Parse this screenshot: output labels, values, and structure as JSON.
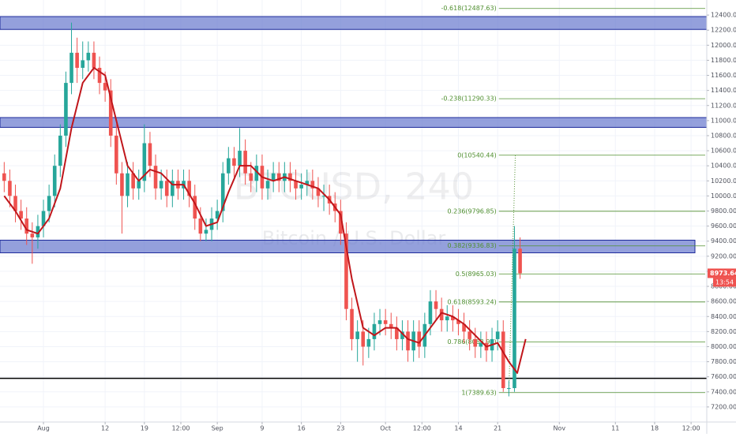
{
  "chart_data": {
    "type": "candlestick",
    "watermark": [
      "BTCUSD, 240",
      "Bitcoin / U.S. Dollar"
    ],
    "up_color": "#26a69a",
    "down_color": "#ef5350",
    "grid": true,
    "xlim": [
      -7.75,
      118.3
    ],
    "ylim": [
      7000,
      12600
    ],
    "xticks": [
      {
        "value": 0,
        "label": "Aug"
      },
      {
        "value": 11,
        "label": "12"
      },
      {
        "value": 18,
        "label": "19"
      },
      {
        "value": 24.5,
        "label": "12:00"
      },
      {
        "value": 31,
        "label": "Sep"
      },
      {
        "value": 39,
        "label": "9"
      },
      {
        "value": 46,
        "label": "16"
      },
      {
        "value": 53,
        "label": "23"
      },
      {
        "value": 61,
        "label": "Oct"
      },
      {
        "value": 67.5,
        "label": "12:00"
      },
      {
        "value": 74,
        "label": "14"
      },
      {
        "value": 81,
        "label": "21"
      },
      {
        "value": 92,
        "label": "Nov"
      },
      {
        "value": 102,
        "label": "11"
      },
      {
        "value": 109,
        "label": "18"
      },
      {
        "value": 115.5,
        "label": "12:00"
      }
    ],
    "yticks": [
      {
        "value": 7200,
        "label": "7200.00"
      },
      {
        "value": 7400,
        "label": "7400.00"
      },
      {
        "value": 7600,
        "label": "7600.00"
      },
      {
        "value": 7800,
        "label": "7800.00"
      },
      {
        "value": 8000,
        "label": "8000.00"
      },
      {
        "value": 8200,
        "label": "8200.00"
      },
      {
        "value": 8400,
        "label": "8400.00"
      },
      {
        "value": 8600,
        "label": "8600.00"
      },
      {
        "value": 8800,
        "label": "8800.00"
      },
      {
        "value": 9000,
        "label": "9000.00"
      },
      {
        "value": 9200,
        "label": "9200.00"
      },
      {
        "value": 9400,
        "label": "9400.00"
      },
      {
        "value": 9600,
        "label": "9600.00"
      },
      {
        "value": 9800,
        "label": "9800.00"
      },
      {
        "value": 10000,
        "label": "10000.00"
      },
      {
        "value": 10200,
        "label": "10200.00"
      },
      {
        "value": 10400,
        "label": "10400.00"
      },
      {
        "value": 10600,
        "label": "10600.00"
      },
      {
        "value": 10800,
        "label": "10800.00"
      },
      {
        "value": 11000,
        "label": "11000.00"
      },
      {
        "value": 11200,
        "label": "11200.00"
      },
      {
        "value": 11400,
        "label": "11400.00"
      },
      {
        "value": 11600,
        "label": "11600.00"
      },
      {
        "value": 11800,
        "label": "11800.00"
      },
      {
        "value": 12000,
        "label": "12000.00"
      },
      {
        "value": 12200,
        "label": "12200.00"
      },
      {
        "value": 12400,
        "label": "12400.00"
      }
    ],
    "x": [
      -7,
      -6,
      -5,
      -4,
      -3,
      -2,
      -1,
      0,
      1,
      2,
      3,
      4,
      5,
      6,
      7,
      8,
      9,
      10,
      11,
      12,
      13,
      14,
      15,
      16,
      17,
      18,
      19,
      20,
      21,
      22,
      23,
      24,
      25,
      26,
      27,
      28,
      29,
      30,
      31,
      32,
      33,
      34,
      35,
      36,
      37,
      38,
      39,
      40,
      41,
      42,
      43,
      44,
      45,
      46,
      47,
      48,
      49,
      50,
      51,
      52,
      53,
      54,
      55,
      56,
      57,
      58,
      59,
      60,
      61,
      62,
      63,
      64,
      65,
      66,
      67,
      68,
      69,
      70,
      71,
      72,
      73,
      74,
      75,
      76,
      77,
      78,
      79,
      80,
      81,
      82,
      83,
      84,
      85
    ],
    "open": [
      10300,
      10200,
      10000,
      9800,
      9700,
      9500,
      9450,
      9600,
      9800,
      10000,
      10400,
      10800,
      11500,
      11900,
      11700,
      11800,
      11900,
      11700,
      11500,
      11400,
      10800,
      10300,
      10000,
      10300,
      10100,
      10200,
      10700,
      10400,
      10100,
      10200,
      10000,
      10200,
      10100,
      10200,
      10000,
      9700,
      9500,
      9550,
      9700,
      9800,
      10300,
      10500,
      10400,
      10600,
      10300,
      10200,
      10400,
      10100,
      10200,
      10300,
      10200,
      10300,
      10200,
      10100,
      10150,
      10200,
      10100,
      10000,
      10000,
      9900,
      9800,
      9500,
      8500,
      8100,
      8200,
      8000,
      8100,
      8300,
      8350,
      8300,
      8250,
      8100,
      8200,
      7950,
      8200,
      8000,
      8300,
      8600,
      8500,
      8350,
      8400,
      8350,
      8300,
      8200,
      8100,
      8000,
      8050,
      7950,
      8100,
      8200,
      7450,
      7450,
      9300
    ],
    "high": [
      10450,
      10350,
      10150,
      9950,
      9850,
      9650,
      9750,
      9950,
      10150,
      10550,
      10950,
      11650,
      12300,
      12100,
      12050,
      12050,
      12050,
      11850,
      11650,
      11550,
      10950,
      10450,
      10450,
      10450,
      10350,
      10950,
      10850,
      10550,
      10350,
      10350,
      10350,
      10350,
      10350,
      10350,
      10150,
      9850,
      9700,
      9850,
      9950,
      10450,
      10650,
      10650,
      10900,
      10750,
      10450,
      10550,
      10550,
      10350,
      10450,
      10450,
      10450,
      10450,
      10350,
      10300,
      10350,
      10350,
      10250,
      10150,
      10150,
      10050,
      9950,
      9650,
      8650,
      8350,
      8350,
      8250,
      8450,
      8500,
      8500,
      8450,
      8400,
      8350,
      8350,
      8350,
      8350,
      8450,
      8750,
      8750,
      8650,
      8550,
      8550,
      8500,
      8450,
      8350,
      8250,
      8200,
      8200,
      8250,
      8350,
      8350,
      7550,
      9600,
      9450
    ],
    "low": [
      10050,
      9850,
      9650,
      9550,
      9350,
      9100,
      9300,
      9450,
      9650,
      9850,
      10250,
      10650,
      11350,
      11500,
      11550,
      11650,
      11550,
      11350,
      11250,
      10650,
      10150,
      9500,
      9850,
      9950,
      9950,
      10050,
      10250,
      9950,
      9950,
      9850,
      9850,
      9950,
      9950,
      9850,
      9550,
      9400,
      9400,
      9400,
      9550,
      9650,
      10150,
      10250,
      10250,
      10150,
      10050,
      10050,
      9950,
      9950,
      10050,
      10050,
      10050,
      10050,
      9950,
      9950,
      10000,
      9950,
      9850,
      9800,
      9750,
      9650,
      9350,
      8350,
      7950,
      7800,
      7750,
      7850,
      7950,
      8150,
      8150,
      8100,
      7950,
      7950,
      7800,
      7800,
      7850,
      7850,
      8150,
      8350,
      8200,
      8200,
      8200,
      8150,
      8050,
      7950,
      7850,
      7850,
      7800,
      7800,
      7950,
      7400,
      7340,
      7400,
      8900
    ],
    "close": [
      10200,
      10000,
      9800,
      9700,
      9500,
      9450,
      9600,
      9800,
      10000,
      10400,
      10800,
      11500,
      11900,
      11700,
      11800,
      11900,
      11700,
      11500,
      11400,
      10800,
      10300,
      10000,
      10300,
      10100,
      10200,
      10700,
      10400,
      10100,
      10200,
      10000,
      10200,
      10100,
      10200,
      10000,
      9700,
      9500,
      9550,
      9700,
      9800,
      10300,
      10500,
      10400,
      10600,
      10300,
      10200,
      10400,
      10100,
      10200,
      10300,
      10200,
      10300,
      10200,
      10100,
      10150,
      10200,
      10100,
      10000,
      10000,
      9900,
      9800,
      9500,
      8500,
      8100,
      8200,
      8000,
      8100,
      8300,
      8350,
      8300,
      8250,
      8100,
      8200,
      7950,
      8200,
      8000,
      8300,
      8600,
      8500,
      8350,
      8400,
      8350,
      8300,
      8200,
      8100,
      8000,
      8050,
      7950,
      8100,
      8200,
      7450,
      7450,
      9300,
      8973.64
    ],
    "ma": {
      "color": "#c0161b",
      "x": [
        -7,
        -5,
        -3,
        -1,
        1,
        3,
        5,
        7,
        9,
        11,
        13,
        15,
        17,
        19,
        21,
        23,
        25,
        27,
        29,
        31,
        33,
        35,
        37,
        39,
        41,
        43,
        45,
        47,
        49,
        51,
        53,
        55,
        57,
        59,
        61,
        63,
        65,
        67,
        69,
        71,
        73,
        75,
        77,
        79,
        81,
        83,
        84.5,
        86
      ],
      "values": [
        10000,
        9800,
        9550,
        9500,
        9700,
        10100,
        10900,
        11500,
        11700,
        11600,
        11000,
        10400,
        10200,
        10350,
        10300,
        10150,
        10150,
        9900,
        9600,
        9650,
        10050,
        10400,
        10400,
        10250,
        10200,
        10250,
        10200,
        10150,
        10100,
        9950,
        9750,
        8900,
        8250,
        8150,
        8250,
        8250,
        8100,
        8050,
        8250,
        8450,
        8400,
        8300,
        8150,
        8000,
        8050,
        7800,
        7650,
        8100
      ]
    },
    "zones": [
      {
        "low": 12210,
        "high": 12380,
        "color": "#7080d0"
      },
      {
        "low": 10910,
        "high": 11040,
        "color": "#7080d0"
      },
      {
        "low": 9245,
        "high": 9413,
        "color": "#7080d0"
      }
    ],
    "support_line": 7580,
    "fib_color": "#4f8f2f",
    "fib_levels": [
      {
        "value": 12487.63,
        "label": "-0.618(12487.63)"
      },
      {
        "value": 11290.33,
        "label": "-0.238(11290.33)"
      },
      {
        "value": 10540.44,
        "label": "0(10540.44)"
      },
      {
        "value": 9796.85,
        "label": "0.236(9796.85)"
      },
      {
        "value": 9336.83,
        "label": "0.382(9336.83)"
      },
      {
        "value": 8965.03,
        "label": "0.5(8965.03)"
      },
      {
        "value": 8593.24,
        "label": "0.618(8593.24)"
      },
      {
        "value": 8063.9,
        "label": "0.786(8063.90)"
      },
      {
        "value": 7389.63,
        "label": "1(7389.63)"
      }
    ],
    "last_price": 8973.64,
    "countdown": "13:54"
  }
}
